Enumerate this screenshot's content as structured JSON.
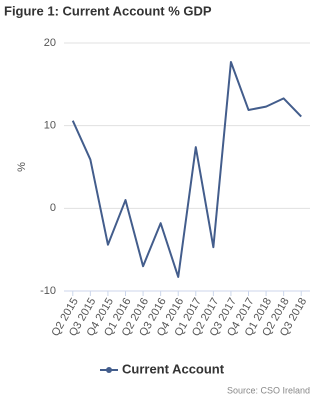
{
  "chart_data": {
    "type": "line",
    "title": "Figure 1: Current Account % GDP",
    "y_label": "%",
    "categories": [
      "Q2 2015",
      "Q3 2015",
      "Q4 2015",
      "Q1 2016",
      "Q2 2016",
      "Q3 2016",
      "Q4 2016",
      "Q1 2017",
      "Q2 2017",
      "Q3 2017",
      "Q4 2017",
      "Q1 2018",
      "Q2 2018",
      "Q3 2018"
    ],
    "series": [
      {
        "name": "Current Account",
        "color": "#435d8c",
        "values": [
          10.6,
          5.9,
          -4.4,
          1.0,
          -7.0,
          -1.8,
          -8.3,
          7.4,
          -4.7,
          17.7,
          11.9,
          12.3,
          13.3,
          11.1
        ]
      }
    ],
    "ylim": [
      -10,
      20
    ],
    "yticks": [
      -10,
      0,
      10,
      20
    ],
    "grid": true,
    "source": "Source: CSO Ireland"
  }
}
